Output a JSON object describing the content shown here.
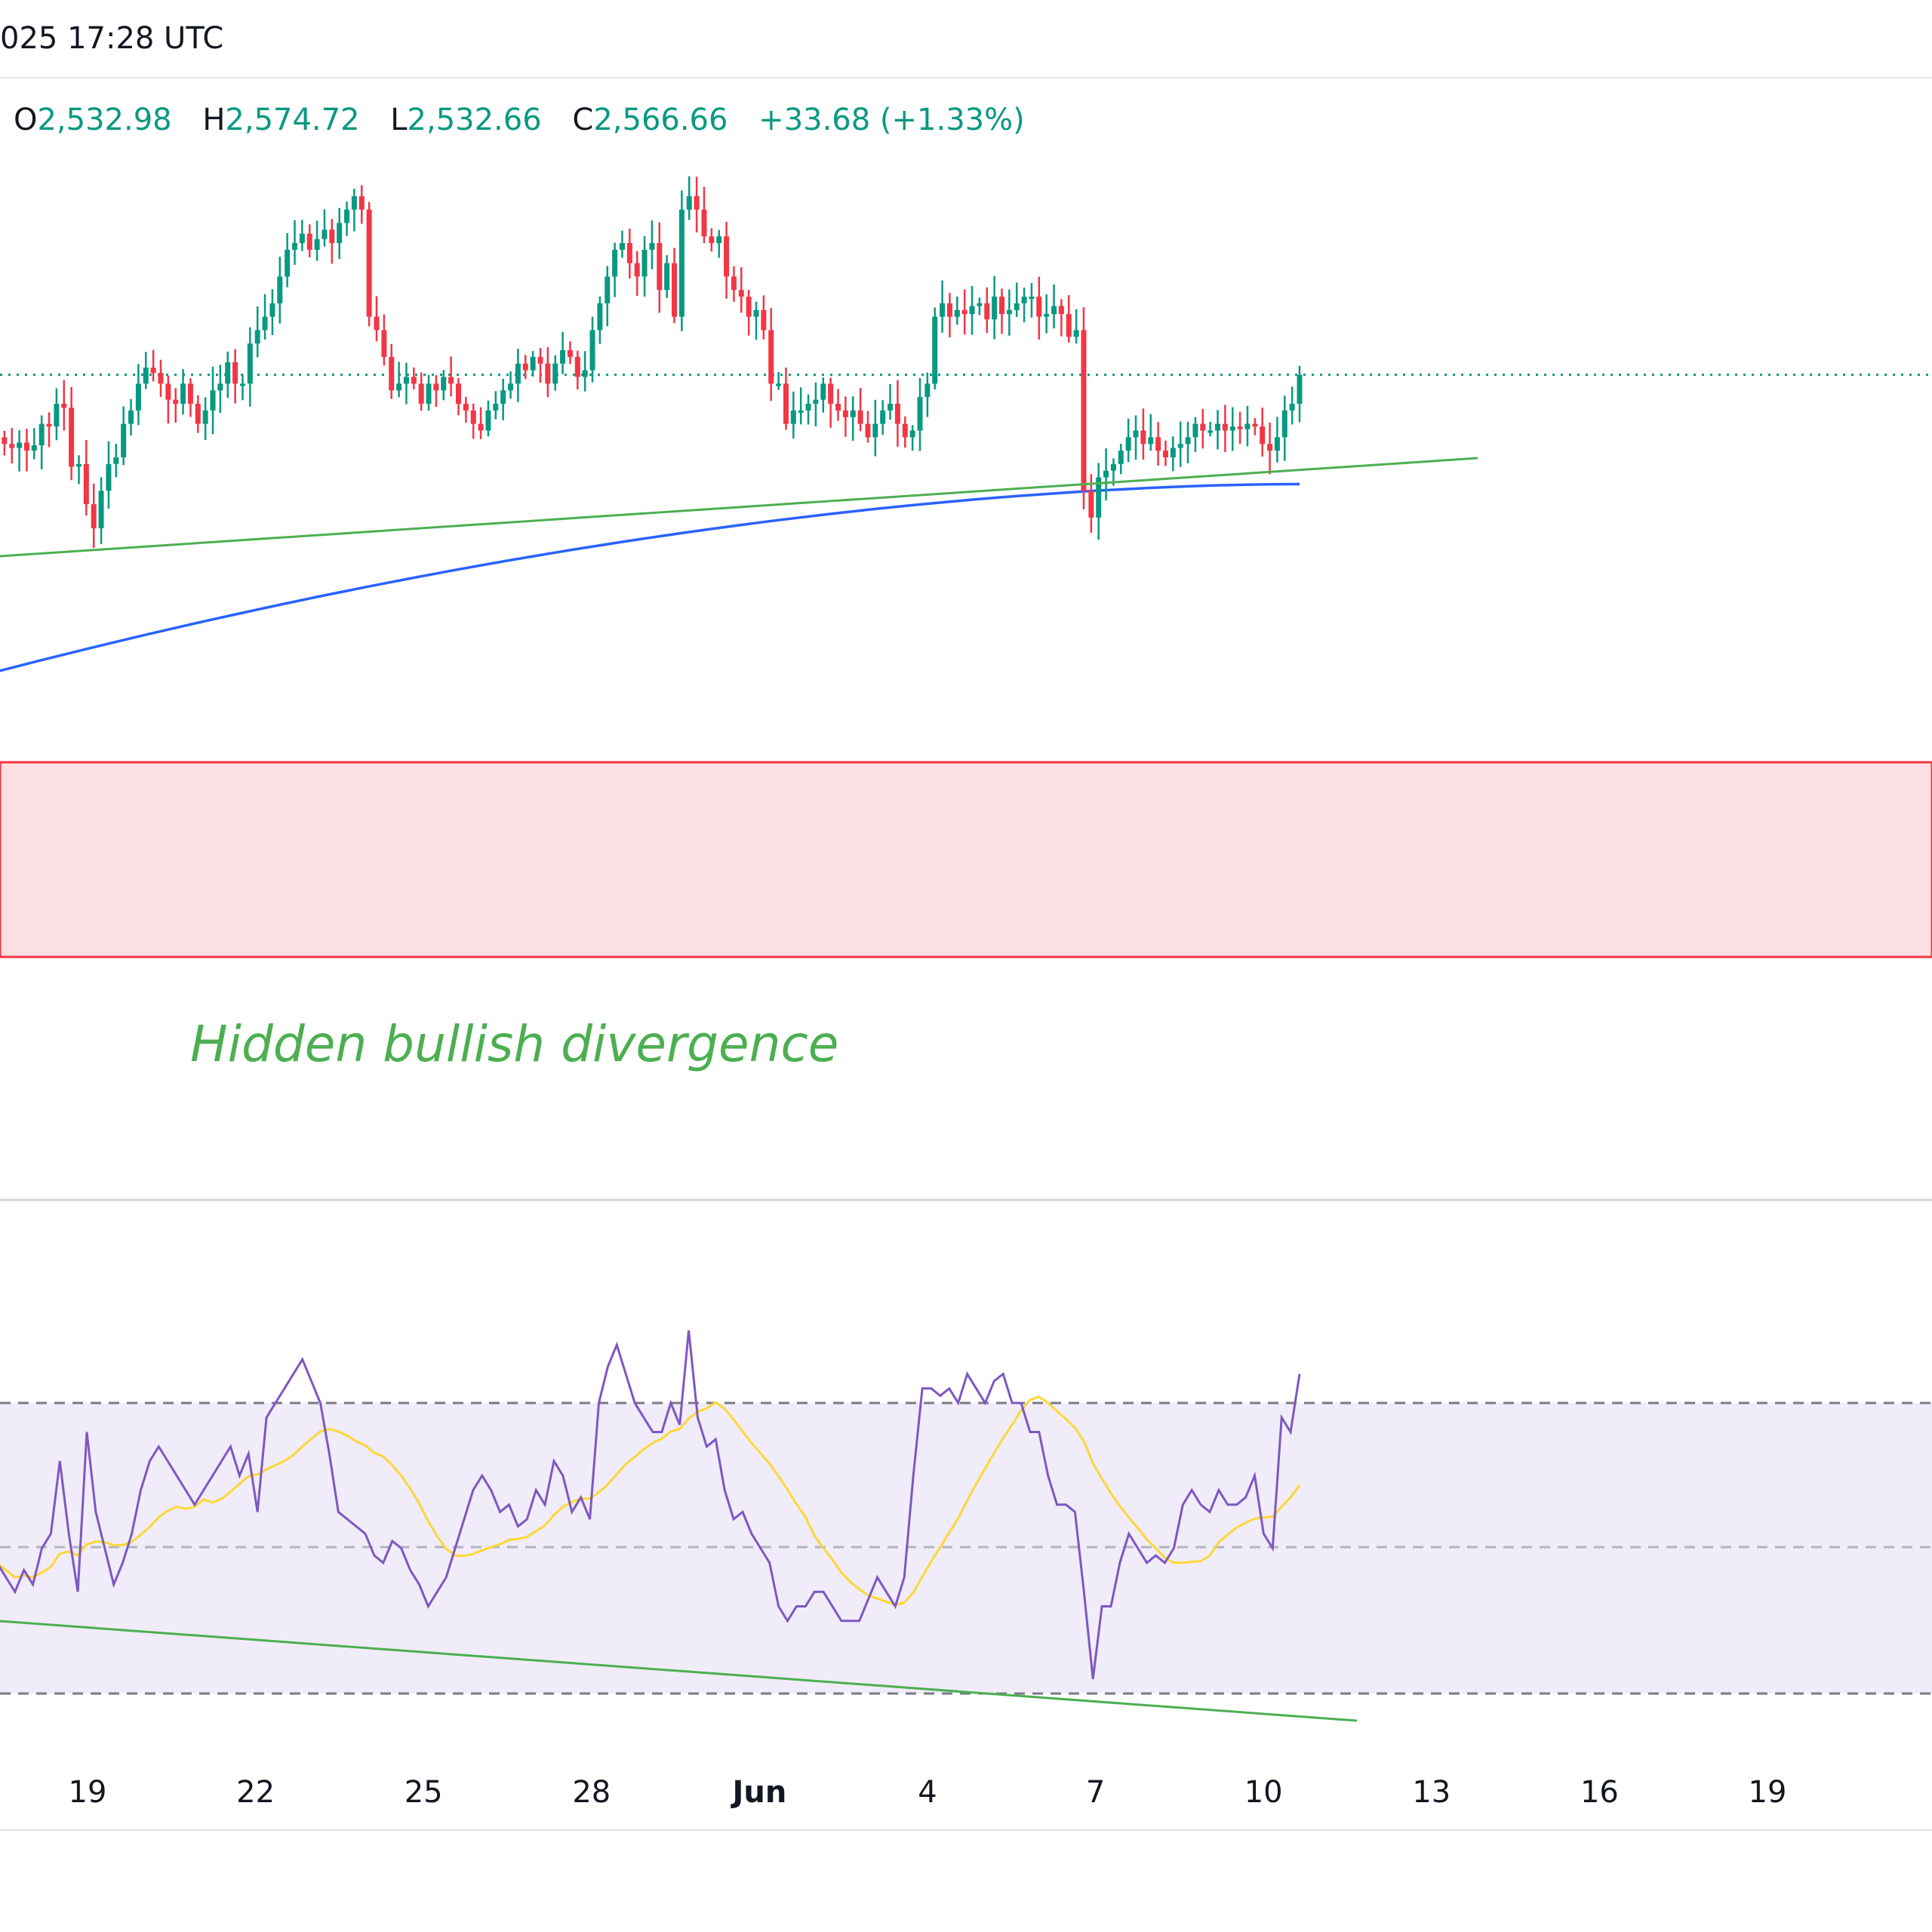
{
  "header": {
    "datetime": "025 17:28 UTC",
    "ohlc": {
      "o_label": "O",
      "o_value": "2,532.98",
      "h_label": "H",
      "h_value": "2,574.72",
      "l_label": "L",
      "l_value": "2,532.66",
      "c_label": "C",
      "c_value": "2,566.66",
      "change": "+33.68 (+1.33%)"
    }
  },
  "annotation": "Hidden bullish divergence",
  "colors": {
    "up": "#089981",
    "down": "#f23645",
    "ma": "#2962ff",
    "trendline": "#4caf50",
    "zone_fill": "#fcdfe2",
    "zone_border": "#f23645",
    "rsi": "#7e57c2",
    "rsi_ma": "#fdd835",
    "rsi_band": "#f0ecf9",
    "close_line": "#089981"
  },
  "chart_data": [
    {
      "type": "candlestick",
      "name": "price",
      "x_axis_ticks": [
        "19",
        "22",
        "25",
        "28",
        "Jun",
        "4",
        "7",
        "10",
        "13",
        "16",
        "19"
      ],
      "last_close": 2566.66,
      "closes": [
        2520,
        2515,
        2512,
        2516,
        2510,
        2514,
        2530,
        2528,
        2545,
        2542,
        2498,
        2500,
        2470,
        2452,
        2480,
        2500,
        2505,
        2530,
        2540,
        2560,
        2572,
        2568,
        2560,
        2548,
        2545,
        2560,
        2545,
        2530,
        2540,
        2555,
        2560,
        2576,
        2560,
        2560,
        2590,
        2600,
        2610,
        2620,
        2640,
        2660,
        2665,
        2672,
        2660,
        2668,
        2675,
        2665,
        2680,
        2690,
        2700,
        2690,
        2610,
        2600,
        2580,
        2555,
        2560,
        2565,
        2560,
        2545,
        2560,
        2555,
        2565,
        2560,
        2545,
        2540,
        2530,
        2525,
        2540,
        2545,
        2555,
        2560,
        2575,
        2570,
        2580,
        2575,
        2560,
        2575,
        2585,
        2580,
        2565,
        2570,
        2600,
        2620,
        2640,
        2660,
        2665,
        2650,
        2640,
        2660,
        2665,
        2630,
        2650,
        2610,
        2690,
        2700,
        2690,
        2670,
        2665,
        2670,
        2640,
        2630,
        2625,
        2610,
        2615,
        2600,
        2560,
        2560,
        2530,
        2540,
        2540,
        2545,
        2548,
        2560,
        2545,
        2540,
        2535,
        2540,
        2530,
        2520,
        2530,
        2540,
        2545,
        2530,
        2520,
        2525,
        2550,
        2560,
        2610,
        2620,
        2610,
        2615,
        2612,
        2618,
        2620,
        2608,
        2625,
        2612,
        2615,
        2620,
        2625,
        2625,
        2610,
        2612,
        2618,
        2612,
        2595,
        2600,
        2480,
        2460,
        2490,
        2495,
        2500,
        2510,
        2520,
        2525,
        2515,
        2520,
        2510,
        2505,
        2512,
        2515,
        2520,
        2530,
        2525,
        2525,
        2530,
        2525,
        2528,
        2526,
        2530,
        2528,
        2515,
        2510,
        2520,
        2540,
        2545,
        2566.66
      ],
      "moving_average": {
        "start": 2345,
        "end": 2485
      },
      "horizontal_zone": {
        "upper": 2330,
        "lower": 2260
      }
    },
    {
      "type": "line",
      "name": "rsi",
      "band": {
        "upper": 70,
        "middle": 50,
        "lower": 30
      },
      "values": [
        48,
        46,
        44,
        47,
        45,
        50,
        52,
        62,
        52,
        44,
        66,
        55,
        50,
        45,
        48,
        52,
        58,
        62,
        64,
        62,
        60,
        58,
        56,
        58,
        60,
        62,
        64,
        60,
        63,
        55,
        68,
        70,
        72,
        74,
        76,
        73,
        70,
        63,
        55,
        54,
        53,
        52,
        49,
        48,
        51,
        50,
        47,
        45,
        42,
        44,
        46,
        50,
        54,
        58,
        60,
        58,
        55,
        56,
        53,
        54,
        58,
        56,
        62,
        60,
        55,
        57,
        54,
        70,
        75,
        78,
        74,
        70,
        68,
        66,
        66,
        70,
        67,
        80,
        68,
        64,
        65,
        58,
        54,
        55,
        52,
        50,
        48,
        42,
        40,
        42,
        42,
        44,
        44,
        42,
        40,
        40,
        40,
        43,
        46,
        44,
        42,
        46,
        60,
        72,
        72,
        71,
        72,
        70,
        74,
        72,
        70,
        73,
        74,
        70,
        70,
        66,
        66,
        60,
        56,
        56,
        55,
        44,
        32,
        42,
        42,
        48,
        52,
        50,
        48,
        49,
        48,
        50,
        56,
        58,
        56,
        55,
        58,
        56,
        56,
        57,
        60,
        52,
        50,
        68,
        66,
        74
      ]
    }
  ]
}
